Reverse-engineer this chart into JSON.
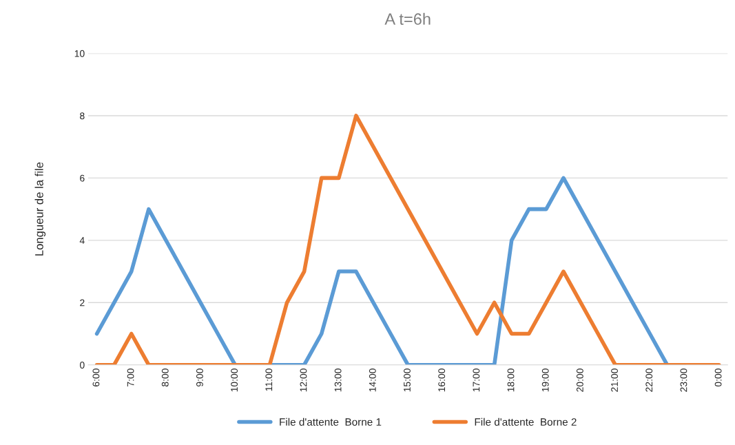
{
  "chart_data": {
    "type": "line",
    "title": "A t=6h",
    "ylabel": "Longueur de la file",
    "categories": [
      "6:00",
      null,
      "7:00",
      null,
      "8:00",
      null,
      "9:00",
      null,
      "10:00",
      null,
      "11:00",
      null,
      "12:00",
      null,
      "13:00",
      null,
      "14:00",
      null,
      "15:00",
      null,
      "16:00",
      null,
      "17:00",
      null,
      "18:00",
      null,
      "19:00",
      null,
      "20:00",
      null,
      "21:00",
      null,
      "22:00",
      null,
      "23:00",
      null,
      "0:00"
    ],
    "series": [
      {
        "name": "File d'attente  Borne 1",
        "color": "#5b9bd5",
        "values": [
          1,
          2,
          3,
          5,
          4,
          3,
          2,
          1,
          0,
          0,
          0,
          0,
          0,
          1,
          3,
          3,
          2,
          1,
          0,
          0,
          0,
          0,
          0,
          0,
          4,
          5,
          5,
          6,
          5,
          4,
          3,
          2,
          1,
          0,
          0,
          null,
          null
        ]
      },
      {
        "name": "File d'attente  Borne 2",
        "color": "#ed7d31",
        "values": [
          0,
          0,
          1,
          0,
          0,
          0,
          0,
          0,
          0,
          0,
          0,
          2,
          3,
          6,
          6,
          8,
          7,
          6,
          5,
          4,
          3,
          2,
          1,
          2,
          1,
          1,
          2,
          3,
          2,
          1,
          0,
          0,
          0,
          0,
          0,
          0,
          0
        ]
      }
    ],
    "ylim": [
      0,
      10
    ],
    "yticks": [
      0,
      2,
      4,
      6,
      8,
      10
    ],
    "grid": "y",
    "legend": "bottom",
    "marker": "none",
    "line_style": "solid"
  }
}
